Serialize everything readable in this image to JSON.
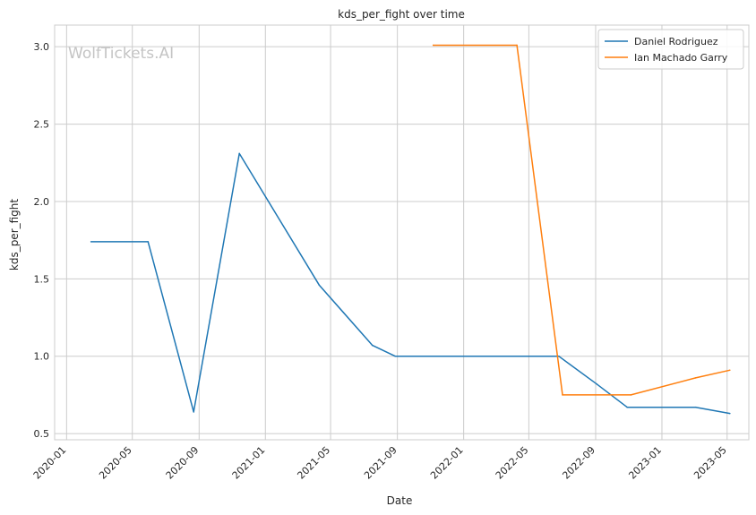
{
  "chart_data": {
    "type": "line",
    "title": "kds_per_fight over time",
    "xlabel": "Date",
    "ylabel": "kds_per_fight",
    "watermark": "WolfTickets.AI",
    "xlim": [
      "2019-12-10",
      "2023-06-10"
    ],
    "ylim": [
      0.46,
      3.14
    ],
    "x_ticks": [
      "2020-01",
      "2020-05",
      "2020-09",
      "2021-01",
      "2021-05",
      "2021-09",
      "2022-01",
      "2022-05",
      "2022-09",
      "2023-01",
      "2023-05"
    ],
    "y_ticks": [
      "0.5",
      "1.0",
      "1.5",
      "2.0",
      "2.5",
      "3.0"
    ],
    "grid": true,
    "legend_position": "top-right",
    "series": [
      {
        "name": "Daniel Rodriguez",
        "color": "#1f77b4",
        "points": [
          {
            "x": "2020-02-15",
            "y": 1.74
          },
          {
            "x": "2020-05-30",
            "y": 1.74
          },
          {
            "x": "2020-08-22",
            "y": 0.64
          },
          {
            "x": "2020-11-14",
            "y": 2.31
          },
          {
            "x": "2021-04-10",
            "y": 1.46
          },
          {
            "x": "2021-07-17",
            "y": 1.07
          },
          {
            "x": "2021-08-28",
            "y": 1.0
          },
          {
            "x": "2022-06-25",
            "y": 1.0
          },
          {
            "x": "2022-09-03",
            "y": 0.82
          },
          {
            "x": "2022-10-29",
            "y": 0.67
          },
          {
            "x": "2023-03-04",
            "y": 0.67
          },
          {
            "x": "2023-05-06",
            "y": 0.63
          }
        ]
      },
      {
        "name": "Ian Machado Garry",
        "color": "#ff7f0e",
        "points": [
          {
            "x": "2021-11-06",
            "y": 3.01
          },
          {
            "x": "2022-04-09",
            "y": 3.01
          },
          {
            "x": "2022-07-02",
            "y": 0.75
          },
          {
            "x": "2022-11-05",
            "y": 0.75
          },
          {
            "x": "2023-03-04",
            "y": 0.86
          },
          {
            "x": "2023-05-06",
            "y": 0.91
          }
        ]
      }
    ]
  }
}
